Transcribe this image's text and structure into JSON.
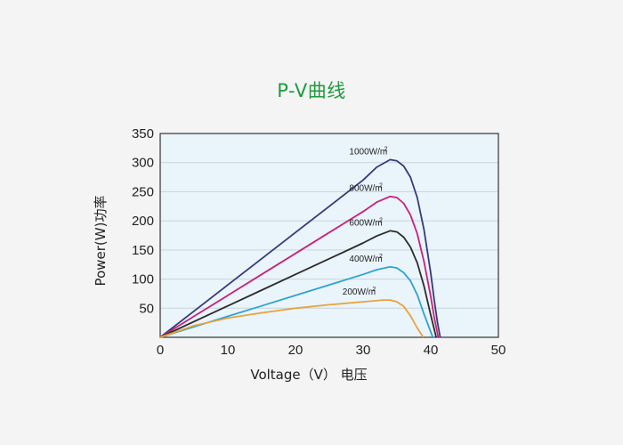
{
  "chart_data": {
    "type": "line",
    "title": "P-V曲线",
    "xlabel": "Voltage（V） 电压",
    "ylabel": "Power(W)功率",
    "xlim": [
      0,
      50
    ],
    "ylim": [
      0,
      350
    ],
    "xticks": [
      0,
      10,
      20,
      30,
      40,
      50
    ],
    "yticks": [
      50,
      100,
      150,
      200,
      250,
      300,
      350
    ],
    "grid": true,
    "background": "#eaf4fb",
    "series": [
      {
        "name": "1000W/m²",
        "label_main": "1000W/m",
        "label_sup": "2",
        "color": "#353a7a",
        "x": [
          0,
          5,
          10,
          15,
          20,
          25,
          30,
          32,
          34,
          35,
          36,
          37,
          38,
          39,
          40,
          40.5,
          41,
          41.4
        ],
        "y": [
          0,
          45,
          90,
          135,
          180,
          225,
          270,
          292,
          305,
          303,
          294,
          275,
          240,
          185,
          110,
          65,
          25,
          0
        ]
      },
      {
        "name": "800W/m²",
        "label_main": "800W/m",
        "label_sup": "2",
        "color": "#c8217a",
        "x": [
          0,
          5,
          10,
          15,
          20,
          25,
          30,
          32,
          34,
          35,
          36,
          37,
          38,
          39,
          40,
          40.5,
          41.1
        ],
        "y": [
          0,
          36,
          72,
          108,
          144,
          180,
          216,
          232,
          242,
          240,
          230,
          210,
          178,
          130,
          70,
          35,
          0
        ]
      },
      {
        "name": "600W/m²",
        "label_main": "600W/m",
        "label_sup": "2",
        "color": "#2b2b2b",
        "x": [
          0,
          5,
          10,
          15,
          20,
          25,
          30,
          32,
          34,
          35,
          36,
          37,
          38,
          39,
          40,
          40.8
        ],
        "y": [
          0,
          27,
          54,
          81,
          108,
          135,
          162,
          174,
          183,
          181,
          172,
          155,
          128,
          88,
          38,
          0
        ]
      },
      {
        "name": "400W/m²",
        "label_main": "400W/m",
        "label_sup": "2",
        "color": "#2ea3cf",
        "x": [
          0,
          5,
          10,
          15,
          20,
          25,
          30,
          32,
          34,
          35,
          36,
          37,
          38,
          39,
          40.3
        ],
        "y": [
          0,
          18,
          36,
          54,
          72,
          90,
          108,
          116,
          121,
          119,
          111,
          97,
          73,
          40,
          0
        ]
      },
      {
        "name": "200W/m²",
        "label_main": "200W/m",
        "label_sup": "2",
        "color": "#e8a33d",
        "x": [
          0,
          5,
          10,
          15,
          20,
          25,
          30,
          33,
          34,
          35,
          36,
          37,
          38,
          38.9
        ],
        "y": [
          0,
          20,
          33,
          42,
          50,
          56,
          61,
          64,
          64,
          61,
          53,
          37,
          16,
          0
        ]
      }
    ]
  }
}
